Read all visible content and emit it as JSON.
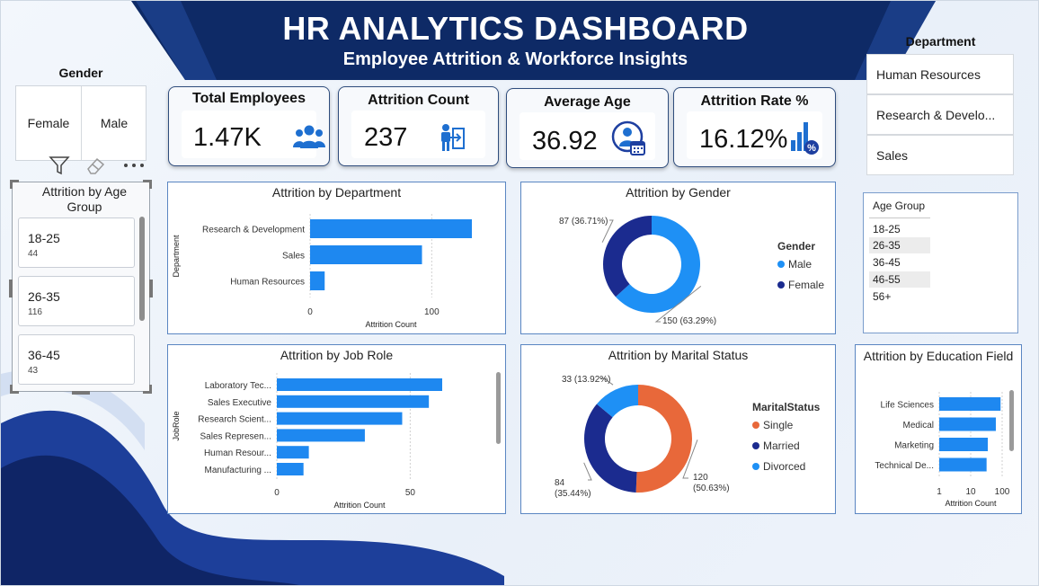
{
  "header": {
    "title": "HR ANALYTICS DASHBOARD",
    "subtitle": "Employee Attrition & Workforce Insights"
  },
  "gender_slicer": {
    "title": "Gender",
    "options": [
      "Female",
      "Male"
    ]
  },
  "department_slicer": {
    "title": "Department",
    "options": [
      "Human Resources",
      "Research & Develo...",
      "Sales"
    ]
  },
  "age_group_list": {
    "title": "Age Group",
    "items": [
      "18-25",
      "26-35",
      "36-45",
      "46-55",
      "56+"
    ]
  },
  "visual_toolbar": {
    "icons": [
      "filter-icon",
      "eraser-icon",
      "more-options-icon"
    ]
  },
  "kpis": [
    {
      "label": "Total Employees",
      "value": "1.47K",
      "icon": "people-icon"
    },
    {
      "label": "Attrition Count",
      "value": "237",
      "icon": "exit-person-icon"
    },
    {
      "label": "Average Age",
      "value": "36.92",
      "icon": "person-calendar-icon"
    },
    {
      "label": "Attrition Rate %",
      "value": "16.12%",
      "icon": "bar-percent-icon"
    }
  ],
  "age_attrition": {
    "title": "Attrition by Age Group",
    "tiles": [
      {
        "label": "18-25",
        "value": "44"
      },
      {
        "label": "26-35",
        "value": "116"
      },
      {
        "label": "36-45",
        "value": "43"
      }
    ]
  },
  "colors": {
    "bar": "#1e88f0",
    "navy": "#1b2f8c",
    "male": "#1e90f5",
    "female": "#1b2b8f",
    "single": "#e8683a",
    "married": "#1b2b8f",
    "divorced": "#1e90f5",
    "header": "#0e2a66"
  },
  "chart_data": [
    {
      "id": "attrition-by-department",
      "type": "bar",
      "title": "Attrition by Department",
      "xlabel": "Attrition Count",
      "ylabel": "Department",
      "categories": [
        "Research & Development",
        "Sales",
        "Human Resources"
      ],
      "values": [
        133,
        92,
        12
      ],
      "xlim": [
        0,
        133
      ],
      "xticks": [
        "0",
        "100"
      ]
    },
    {
      "id": "attrition-by-gender",
      "type": "pie",
      "title": "Attrition by Gender",
      "legend_title": "Gender",
      "slices": [
        {
          "name": "Male",
          "value": 150,
          "label": "150 (63.29%)"
        },
        {
          "name": "Female",
          "value": 87,
          "label": "87 (36.71%)"
        }
      ]
    },
    {
      "id": "attrition-by-job-role",
      "type": "bar",
      "title": "Attrition by Job Role",
      "xlabel": "Attrition Count",
      "ylabel": "JobRole",
      "categories": [
        "Laboratory Tec...",
        "Sales Executive",
        "Research Scient...",
        "Sales Represen...",
        "Human Resour...",
        "Manufacturing ..."
      ],
      "values": [
        62,
        57,
        47,
        33,
        12,
        10
      ],
      "xlim": [
        0,
        62
      ],
      "xticks": [
        "0",
        "50"
      ]
    },
    {
      "id": "attrition-by-marital-status",
      "type": "pie",
      "title": "Attrition by Marital Status",
      "legend_title": "MaritalStatus",
      "slices": [
        {
          "name": "Single",
          "value": 120,
          "label": "120 (50.63%)"
        },
        {
          "name": "Married",
          "value": 84,
          "label": "84 (35.44%)"
        },
        {
          "name": "Divorced",
          "value": 33,
          "label": "33 (13.92%)"
        }
      ]
    },
    {
      "id": "attrition-by-education-field",
      "type": "bar",
      "title": "Attrition by Education Field",
      "xlabel": "Attrition Count",
      "scale": "log",
      "categories": [
        "Life Sciences",
        "Medical",
        "Marketing",
        "Technical De..."
      ],
      "values": [
        89,
        63,
        35,
        32
      ],
      "xticks": [
        "1",
        "10",
        "100"
      ]
    }
  ]
}
